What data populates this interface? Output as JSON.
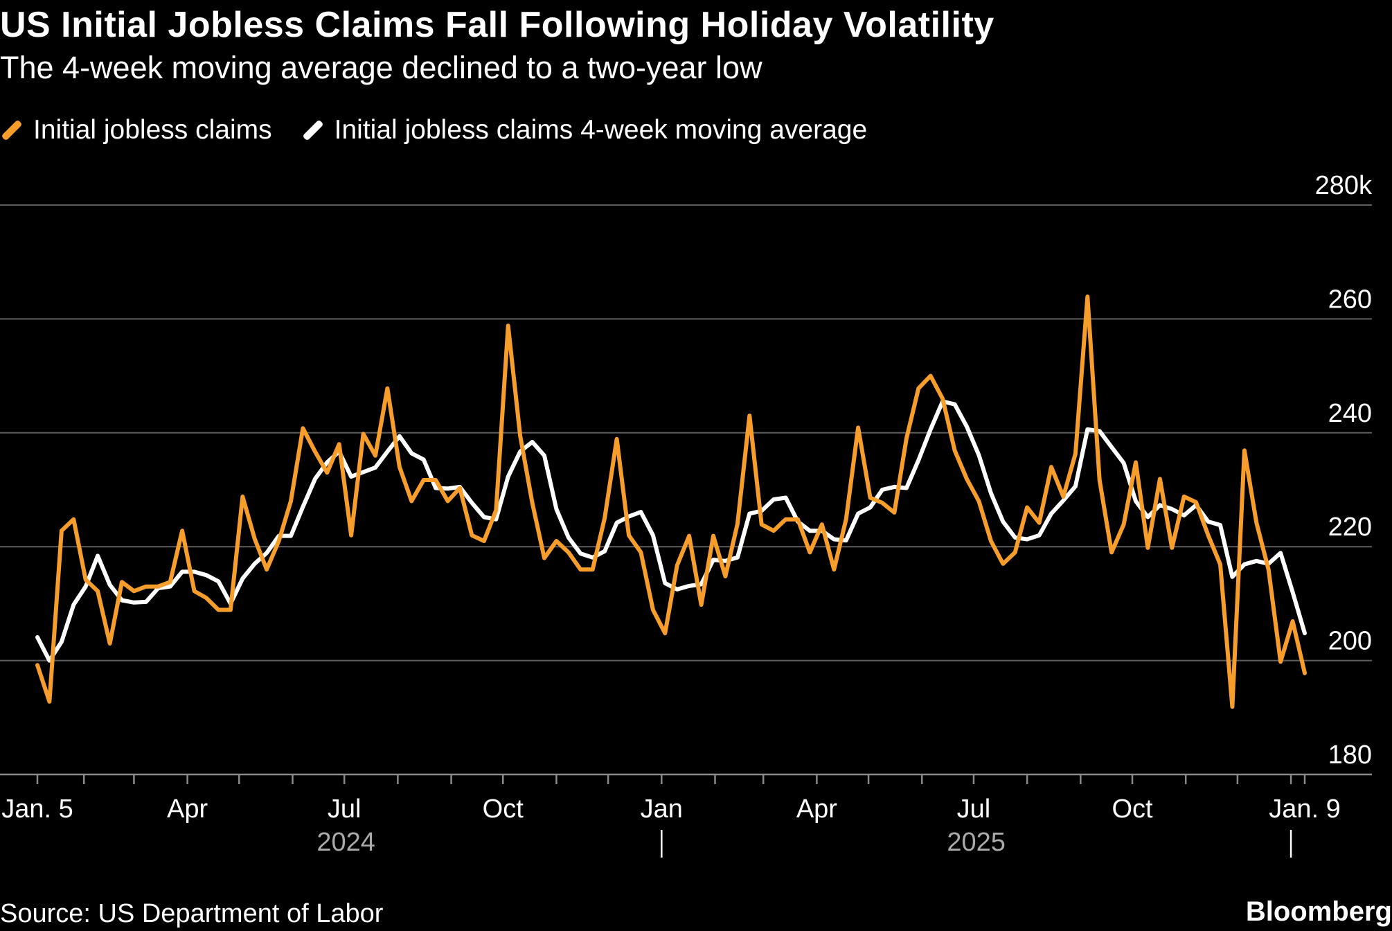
{
  "title": "US Initial Jobless Claims Fall Following Holiday Volatility",
  "subtitle": "The 4-week moving average declined to a two-year low",
  "source": "Source: US Department of Labor",
  "logo": "Bloomberg",
  "colors": {
    "background": "#000000",
    "claims": "#f79d2b",
    "moving_average": "#ffffff",
    "grid": "#5e5e5e",
    "year_label": "#aaaaaa"
  },
  "chart_data": {
    "type": "line",
    "x_start": "2024-01-05",
    "x_end": "2026-01-09",
    "frequency": "weekly",
    "ylim": [
      180,
      280
    ],
    "yticks": [
      180,
      200,
      220,
      240,
      260,
      280
    ],
    "ytick_labels": [
      "180",
      "200",
      "220",
      "240",
      "260",
      "280k"
    ],
    "grid": true,
    "legend": "top-left",
    "xtick_labels": [
      {
        "date": "2024-01-05",
        "label": "Jan. 5"
      },
      {
        "date": "2024-04-01",
        "label": "Apr"
      },
      {
        "date": "2024-07-01",
        "label": "Jul"
      },
      {
        "date": "2024-10-01",
        "label": "Oct"
      },
      {
        "date": "2025-01-01",
        "label": "Jan"
      },
      {
        "date": "2025-04-01",
        "label": "Apr"
      },
      {
        "date": "2025-07-01",
        "label": "Jul"
      },
      {
        "date": "2025-10-01",
        "label": "Oct"
      },
      {
        "date": "2026-01-09",
        "label": "Jan. 9"
      }
    ],
    "year_labels": [
      {
        "year": "2024",
        "from": "2024-01-01",
        "to": "2025-01-01"
      },
      {
        "year": "2025",
        "from": "2025-01-01",
        "to": "2026-01-01"
      }
    ],
    "series": [
      {
        "name": "Initial jobless claims",
        "values": [
          199.2,
          192.8,
          222.8,
          224.8,
          214.2,
          212.2,
          203,
          213.8,
          212.2,
          213,
          213,
          213.8,
          222.8,
          212.2,
          211,
          208.9,
          208.9,
          228.8,
          221.4,
          216,
          221,
          228,
          240.8,
          236.7,
          233,
          238,
          222,
          239.8,
          236,
          247.8,
          234,
          228,
          231.7,
          231.7,
          228,
          230.3,
          222,
          221,
          226.4,
          258.8,
          239.5,
          227.7,
          218,
          221,
          219,
          216,
          216,
          225,
          238.9,
          222,
          219,
          208.9,
          204.8,
          216.7,
          221.9,
          209.8,
          221.9,
          214.8,
          224,
          243,
          223.9,
          222.8,
          224.8,
          224.8,
          219,
          223.9,
          216,
          224.8,
          240.9,
          228.6,
          227.7,
          226,
          239,
          247.8,
          250,
          246,
          236.9,
          231.9,
          228,
          221,
          217,
          219,
          226.9,
          224.2,
          234,
          228.8,
          236.3,
          263.9,
          231.7,
          219,
          223.9,
          234.8,
          219.8,
          231.9,
          219.8,
          228.8,
          227.8,
          222,
          216.9,
          191.9,
          236.9,
          224.2,
          216,
          199.8,
          206.9,
          197.8
        ]
      },
      {
        "name": "Initial jobless claims 4-week moving average",
        "values": [
          204.1,
          200,
          203.3,
          209.8,
          213,
          218.4,
          213.3,
          210.6,
          210.2,
          210.3,
          212.7,
          213,
          215.6,
          215.6,
          215,
          213.9,
          210,
          214.4,
          217,
          218.9,
          221.9,
          221.9,
          227,
          231.9,
          234.8,
          236.7,
          232.3,
          233.1,
          233.9,
          236.7,
          239.4,
          236.4,
          235.3,
          230.3,
          230.2,
          230.5,
          227.7,
          225.2,
          224.8,
          232.3,
          236.7,
          238.4,
          236,
          226.6,
          221.6,
          218.8,
          218.1,
          219.2,
          224.2,
          225.3,
          226.1,
          222,
          213.6,
          212.5,
          213.1,
          213.4,
          217.7,
          217.5,
          218.1,
          225.8,
          226.3,
          228.3,
          228.6,
          224.4,
          222.8,
          222.8,
          221.3,
          221.1,
          225.8,
          226.9,
          230,
          230.5,
          230.3,
          235.2,
          240.6,
          245.5,
          245,
          241.1,
          236.1,
          229.4,
          224.4,
          221.6,
          221.3,
          222,
          225.8,
          228.1,
          230.6,
          240.6,
          240.3,
          237.5,
          234.7,
          228,
          225.2,
          227.3,
          226.6,
          225.5,
          227.3,
          224.4,
          223.8,
          214.7,
          216.9,
          217.5,
          217,
          218.9,
          212,
          204.8
        ]
      }
    ]
  }
}
